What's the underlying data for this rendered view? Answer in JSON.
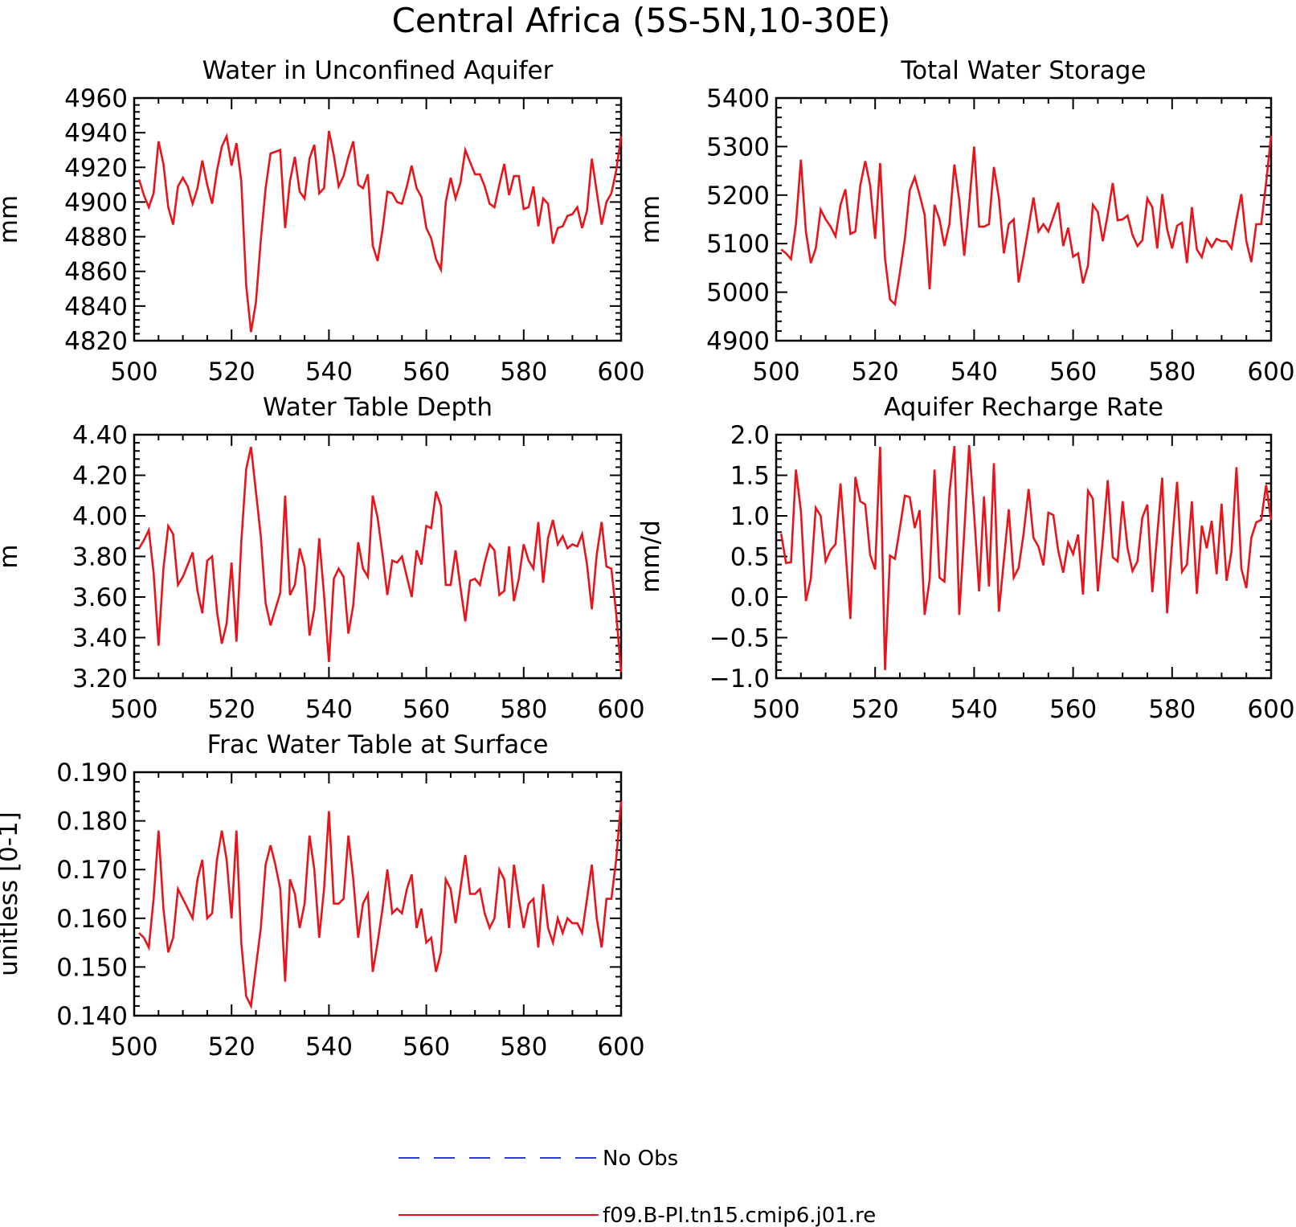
{
  "figure": {
    "title": "Central Africa (5S-5N,10-30E)",
    "legend": [
      {
        "label": "No Obs",
        "color": "#2a3bcf",
        "style": "dashed"
      },
      {
        "label": "f09.B-PI.tn15.cmip6.j01.re",
        "color": "#e8141b",
        "style": "solid"
      }
    ],
    "colors": {
      "series": "#e8141b",
      "obs": "#2a3bcf",
      "axis": "#000000"
    }
  },
  "chart_data": [
    {
      "type": "line",
      "title": "Water in Unconfined Aquifer",
      "ylabel": "mm",
      "xlim": [
        500,
        600
      ],
      "ylim": [
        4820,
        4960
      ],
      "xticks": [
        "500",
        "520",
        "540",
        "560",
        "580",
        "600"
      ],
      "yticks": [
        "4820",
        "4840",
        "4860",
        "4880",
        "4900",
        "4920",
        "4940",
        "4960"
      ],
      "series": [
        {
          "name": "f09.B-PI.tn15.cmip6.j01.re",
          "x_start": 501,
          "values": [
            4913,
            4904,
            4897,
            4905,
            4935,
            4922,
            4897,
            4887,
            4909,
            4914,
            4909,
            4899,
            4908,
            4924,
            4910,
            4899,
            4918,
            4932,
            4938,
            4921,
            4934,
            4912,
            4852,
            4825,
            4842,
            4878,
            4908,
            4928,
            4929,
            4930,
            4885,
            4912,
            4926,
            4906,
            4902,
            4925,
            4933,
            4905,
            4908,
            4941,
            4927,
            4909,
            4915,
            4926,
            4935,
            4910,
            4908,
            4916,
            4875,
            4866,
            4884,
            4906,
            4905,
            4900,
            4899,
            4909,
            4921,
            4908,
            4903,
            4885,
            4879,
            4867,
            4861,
            4900,
            4914,
            4902,
            4911,
            4930,
            4923,
            4916,
            4916,
            4909,
            4899,
            4897,
            4910,
            4922,
            4904,
            4915,
            4915,
            4896,
            4897,
            4909,
            4886,
            4902,
            4899,
            4876,
            4885,
            4886,
            4892,
            4893,
            4897,
            4885,
            4895,
            4925,
            4906,
            4887,
            4900,
            4905,
            4918,
            4938
          ]
        }
      ]
    },
    {
      "type": "line",
      "title": "Total Water Storage",
      "ylabel": "mm",
      "xlim": [
        500,
        600
      ],
      "ylim": [
        4900,
        5400
      ],
      "xticks": [
        "500",
        "520",
        "540",
        "560",
        "580",
        "600"
      ],
      "yticks": [
        "4900",
        "5000",
        "5100",
        "5200",
        "5300",
        "5400"
      ],
      "series": [
        {
          "name": "f09.B-PI.tn15.cmip6.j01.re",
          "x_start": 501,
          "values": [
            5088,
            5080,
            5068,
            5140,
            5273,
            5125,
            5060,
            5090,
            5170,
            5150,
            5135,
            5115,
            5180,
            5212,
            5120,
            5125,
            5220,
            5270,
            5220,
            5110,
            5266,
            5070,
            4985,
            4975,
            5040,
            5110,
            5210,
            5237,
            5200,
            5160,
            5006,
            5180,
            5150,
            5095,
            5140,
            5263,
            5190,
            5075,
            5180,
            5300,
            5135,
            5135,
            5140,
            5258,
            5195,
            5080,
            5140,
            5150,
            5020,
            5075,
            5135,
            5195,
            5125,
            5140,
            5125,
            5155,
            5185,
            5095,
            5133,
            5073,
            5080,
            5018,
            5055,
            5180,
            5165,
            5105,
            5160,
            5225,
            5148,
            5150,
            5158,
            5118,
            5095,
            5107,
            5193,
            5175,
            5090,
            5202,
            5130,
            5090,
            5137,
            5143,
            5060,
            5175,
            5088,
            5072,
            5110,
            5093,
            5110,
            5105,
            5105,
            5090,
            5150,
            5202,
            5105,
            5062,
            5140,
            5140,
            5225,
            5322
          ]
        }
      ]
    },
    {
      "type": "line",
      "title": "Water Table Depth",
      "ylabel": "m",
      "xlim": [
        500,
        600
      ],
      "ylim": [
        3.2,
        4.4
      ],
      "xticks": [
        "500",
        "520",
        "540",
        "560",
        "580",
        "600"
      ],
      "yticks": [
        "3.20",
        "3.40",
        "3.60",
        "3.80",
        "4.00",
        "4.20",
        "4.40"
      ],
      "series": [
        {
          "name": "f09.B-PI.tn15.cmip6.j01.re",
          "x_start": 501,
          "values": [
            3.84,
            3.88,
            3.93,
            3.72,
            3.36,
            3.74,
            3.95,
            3.91,
            3.66,
            3.7,
            3.76,
            3.82,
            3.63,
            3.52,
            3.78,
            3.8,
            3.53,
            3.37,
            3.47,
            3.77,
            3.38,
            3.87,
            4.23,
            4.34,
            4.12,
            3.9,
            3.57,
            3.46,
            3.54,
            3.62,
            4.1,
            3.61,
            3.66,
            3.84,
            3.75,
            3.41,
            3.54,
            3.89,
            3.61,
            3.28,
            3.69,
            3.74,
            3.7,
            3.42,
            3.56,
            3.87,
            3.74,
            3.7,
            4.1,
            3.99,
            3.81,
            3.61,
            3.78,
            3.77,
            3.8,
            3.7,
            3.6,
            3.83,
            3.76,
            3.95,
            3.94,
            4.12,
            4.05,
            3.66,
            3.66,
            3.83,
            3.65,
            3.48,
            3.68,
            3.69,
            3.66,
            3.77,
            3.86,
            3.83,
            3.61,
            3.63,
            3.85,
            3.58,
            3.69,
            3.86,
            3.78,
            3.74,
            3.97,
            3.67,
            3.89,
            3.98,
            3.86,
            3.9,
            3.84,
            3.86,
            3.85,
            3.91,
            3.76,
            3.54,
            3.81,
            3.97,
            3.75,
            3.74,
            3.52,
            3.23
          ]
        }
      ]
    },
    {
      "type": "line",
      "title": "Aquifer Recharge Rate",
      "ylabel": "mm/d",
      "xlim": [
        500,
        600
      ],
      "ylim": [
        -1.0,
        2.0
      ],
      "xticks": [
        "500",
        "520",
        "540",
        "560",
        "580",
        "600"
      ],
      "yticks": [
        "−1.0",
        "−0.5",
        "0.0",
        "0.5",
        "1.0",
        "1.5",
        "2.0"
      ],
      "series": [
        {
          "name": "f09.B-PI.tn15.cmip6.j01.re",
          "x_start": 501,
          "values": [
            0.78,
            0.42,
            0.43,
            1.57,
            1.06,
            -0.05,
            0.22,
            1.1,
            1.0,
            0.44,
            0.58,
            0.65,
            1.4,
            0.6,
            -0.27,
            1.48,
            1.18,
            1.14,
            0.52,
            0.34,
            1.85,
            -0.9,
            0.51,
            0.47,
            0.85,
            1.25,
            1.23,
            0.85,
            1.07,
            -0.22,
            0.21,
            1.57,
            0.24,
            0.19,
            1.27,
            1.86,
            -0.22,
            0.8,
            1.87,
            1.02,
            0.07,
            1.24,
            0.13,
            1.65,
            -0.18,
            0.45,
            1.08,
            0.24,
            0.36,
            0.78,
            1.33,
            0.73,
            0.62,
            0.39,
            1.04,
            1.01,
            0.57,
            0.3,
            0.67,
            0.53,
            0.77,
            0.03,
            1.31,
            1.21,
            0.07,
            0.71,
            1.44,
            0.49,
            0.44,
            1.18,
            0.6,
            0.32,
            0.44,
            0.98,
            1.14,
            0.06,
            0.77,
            1.47,
            -0.2,
            0.67,
            1.42,
            0.31,
            0.4,
            1.18,
            0.04,
            0.88,
            0.6,
            0.94,
            0.28,
            1.15,
            0.2,
            0.56,
            1.6,
            0.35,
            0.11,
            0.73,
            0.92,
            0.95,
            1.38,
            0.95
          ]
        }
      ]
    },
    {
      "type": "line",
      "title": "Frac Water Table at Surface",
      "ylabel": "unitless [0-1]",
      "xlim": [
        500,
        600
      ],
      "ylim": [
        0.14,
        0.19
      ],
      "xticks": [
        "500",
        "520",
        "540",
        "560",
        "580",
        "600"
      ],
      "yticks": [
        "0.140",
        "0.150",
        "0.160",
        "0.170",
        "0.180",
        "0.190"
      ],
      "series": [
        {
          "name": "f09.B-PI.tn15.cmip6.j01.re",
          "x_start": 501,
          "values": [
            0.157,
            0.156,
            0.154,
            0.164,
            0.178,
            0.162,
            0.153,
            0.156,
            0.166,
            0.164,
            0.162,
            0.16,
            0.168,
            0.172,
            0.16,
            0.161,
            0.172,
            0.178,
            0.172,
            0.16,
            0.178,
            0.155,
            0.144,
            0.142,
            0.15,
            0.158,
            0.171,
            0.175,
            0.171,
            0.166,
            0.147,
            0.168,
            0.165,
            0.158,
            0.163,
            0.177,
            0.17,
            0.156,
            0.166,
            0.182,
            0.163,
            0.163,
            0.164,
            0.177,
            0.168,
            0.156,
            0.163,
            0.165,
            0.149,
            0.155,
            0.162,
            0.17,
            0.161,
            0.162,
            0.161,
            0.166,
            0.169,
            0.158,
            0.162,
            0.155,
            0.156,
            0.149,
            0.153,
            0.168,
            0.166,
            0.159,
            0.166,
            0.173,
            0.165,
            0.165,
            0.166,
            0.161,
            0.158,
            0.16,
            0.17,
            0.168,
            0.158,
            0.171,
            0.164,
            0.158,
            0.163,
            0.164,
            0.154,
            0.167,
            0.158,
            0.155,
            0.16,
            0.157,
            0.16,
            0.159,
            0.159,
            0.157,
            0.164,
            0.171,
            0.16,
            0.154,
            0.164,
            0.164,
            0.172,
            0.184
          ]
        }
      ]
    }
  ]
}
